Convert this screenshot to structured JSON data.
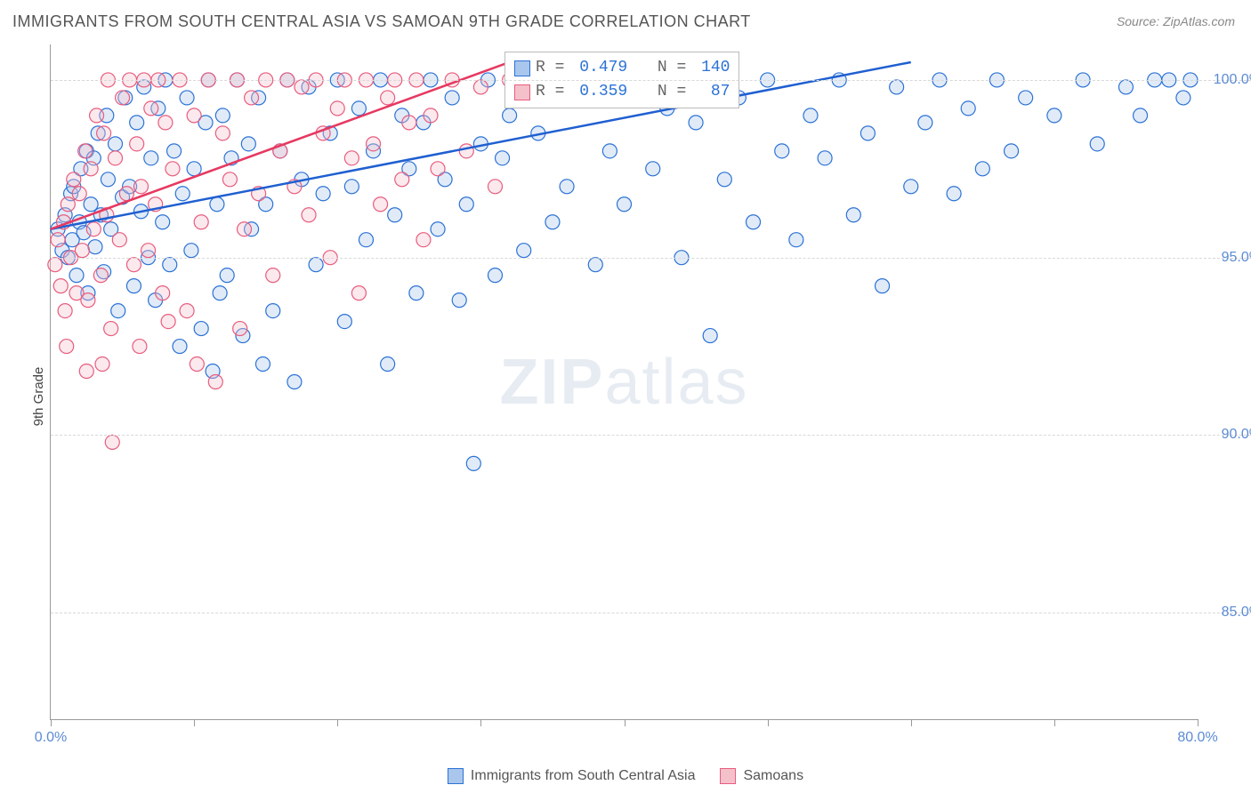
{
  "title": "IMMIGRANTS FROM SOUTH CENTRAL ASIA VS SAMOAN 9TH GRADE CORRELATION CHART",
  "source": "Source: ZipAtlas.com",
  "ylabel": "9th Grade",
  "watermark_zip": "ZIP",
  "watermark_atlas": "atlas",
  "chart": {
    "type": "scatter",
    "xlim": [
      0,
      80
    ],
    "ylim": [
      82,
      101
    ],
    "background_color": "#ffffff",
    "grid_color": "#d8d8d8",
    "axis_color": "#999999",
    "xticks": [
      0,
      10,
      20,
      30,
      40,
      50,
      60,
      70,
      80
    ],
    "xtick_labels": {
      "0": "0.0%",
      "80": "80.0%"
    },
    "yticks": [
      85,
      90,
      95,
      100
    ],
    "ytick_labels": {
      "85": "85.0%",
      "90": "90.0%",
      "95": "95.0%",
      "100": "100.0%"
    },
    "tick_label_color": "#5b8bd4",
    "tick_label_fontsize": 16,
    "marker_radius": 8,
    "marker_stroke_width": 1.2,
    "marker_fill_opacity": 0.35,
    "line_width": 2.5,
    "series": [
      {
        "name": "Immigrants from South Central Asia",
        "fill_color": "#a9c6ec",
        "stroke_color": "#2b72d6",
        "line_color": "#1f5fd1",
        "R_label": "R = ",
        "R_value": "0.479",
        "N_label": "N = ",
        "N_value": "140",
        "trend": {
          "x1": 0,
          "y1": 95.8,
          "x2": 60,
          "y2": 100.5
        },
        "points": [
          [
            0.5,
            95.8
          ],
          [
            0.8,
            95.2
          ],
          [
            1.0,
            96.2
          ],
          [
            1.2,
            95.0
          ],
          [
            1.4,
            96.8
          ],
          [
            1.5,
            95.5
          ],
          [
            1.6,
            97.0
          ],
          [
            1.8,
            94.5
          ],
          [
            2.0,
            96.0
          ],
          [
            2.1,
            97.5
          ],
          [
            2.3,
            95.7
          ],
          [
            2.5,
            98.0
          ],
          [
            2.6,
            94.0
          ],
          [
            2.8,
            96.5
          ],
          [
            3.0,
            97.8
          ],
          [
            3.1,
            95.3
          ],
          [
            3.3,
            98.5
          ],
          [
            3.5,
            96.2
          ],
          [
            3.7,
            94.6
          ],
          [
            3.9,
            99.0
          ],
          [
            4.0,
            97.2
          ],
          [
            4.2,
            95.8
          ],
          [
            4.5,
            98.2
          ],
          [
            4.7,
            93.5
          ],
          [
            5.0,
            96.7
          ],
          [
            5.2,
            99.5
          ],
          [
            5.5,
            97.0
          ],
          [
            5.8,
            94.2
          ],
          [
            6.0,
            98.8
          ],
          [
            6.3,
            96.3
          ],
          [
            6.5,
            99.8
          ],
          [
            6.8,
            95.0
          ],
          [
            7.0,
            97.8
          ],
          [
            7.3,
            93.8
          ],
          [
            7.5,
            99.2
          ],
          [
            7.8,
            96.0
          ],
          [
            8.0,
            100.0
          ],
          [
            8.3,
            94.8
          ],
          [
            8.6,
            98.0
          ],
          [
            9.0,
            92.5
          ],
          [
            9.2,
            96.8
          ],
          [
            9.5,
            99.5
          ],
          [
            9.8,
            95.2
          ],
          [
            10.0,
            97.5
          ],
          [
            10.5,
            93.0
          ],
          [
            10.8,
            98.8
          ],
          [
            11.0,
            100.0
          ],
          [
            11.3,
            91.8
          ],
          [
            11.6,
            96.5
          ],
          [
            12.0,
            99.0
          ],
          [
            12.3,
            94.5
          ],
          [
            12.6,
            97.8
          ],
          [
            13.0,
            100.0
          ],
          [
            13.4,
            92.8
          ],
          [
            13.8,
            98.2
          ],
          [
            14.0,
            95.8
          ],
          [
            14.5,
            99.5
          ],
          [
            15.0,
            96.5
          ],
          [
            15.5,
            93.5
          ],
          [
            16.0,
            98.0
          ],
          [
            16.5,
            100.0
          ],
          [
            17.0,
            91.5
          ],
          [
            17.5,
            97.2
          ],
          [
            18.0,
            99.8
          ],
          [
            18.5,
            94.8
          ],
          [
            19.0,
            96.8
          ],
          [
            19.5,
            98.5
          ],
          [
            20.0,
            100.0
          ],
          [
            20.5,
            93.2
          ],
          [
            21.0,
            97.0
          ],
          [
            21.5,
            99.2
          ],
          [
            22.0,
            95.5
          ],
          [
            22.5,
            98.0
          ],
          [
            23.0,
            100.0
          ],
          [
            23.5,
            92.0
          ],
          [
            24.0,
            96.2
          ],
          [
            24.5,
            99.0
          ],
          [
            25.0,
            97.5
          ],
          [
            25.5,
            94.0
          ],
          [
            26.0,
            98.8
          ],
          [
            26.5,
            100.0
          ],
          [
            27.0,
            95.8
          ],
          [
            27.5,
            97.2
          ],
          [
            28.0,
            99.5
          ],
          [
            28.5,
            93.8
          ],
          [
            29.0,
            96.5
          ],
          [
            29.5,
            89.2
          ],
          [
            30.0,
            98.2
          ],
          [
            30.5,
            100.0
          ],
          [
            31.0,
            94.5
          ],
          [
            31.5,
            97.8
          ],
          [
            32.0,
            99.0
          ],
          [
            33.0,
            95.2
          ],
          [
            34.0,
            98.5
          ],
          [
            35.0,
            96.0
          ],
          [
            35.5,
            100.0
          ],
          [
            36.0,
            97.0
          ],
          [
            37.0,
            99.8
          ],
          [
            38.0,
            94.8
          ],
          [
            39.0,
            98.0
          ],
          [
            40.0,
            96.5
          ],
          [
            41.0,
            100.0
          ],
          [
            42.0,
            97.5
          ],
          [
            43.0,
            99.2
          ],
          [
            44.0,
            95.0
          ],
          [
            45.0,
            98.8
          ],
          [
            46.0,
            92.8
          ],
          [
            47.0,
            97.2
          ],
          [
            48.0,
            99.5
          ],
          [
            49.0,
            96.0
          ],
          [
            50.0,
            100.0
          ],
          [
            51.0,
            98.0
          ],
          [
            52.0,
            95.5
          ],
          [
            53.0,
            99.0
          ],
          [
            54.0,
            97.8
          ],
          [
            55.0,
            100.0
          ],
          [
            56.0,
            96.2
          ],
          [
            57.0,
            98.5
          ],
          [
            58.0,
            94.2
          ],
          [
            59.0,
            99.8
          ],
          [
            60.0,
            97.0
          ],
          [
            61.0,
            98.8
          ],
          [
            62.0,
            100.0
          ],
          [
            63.0,
            96.8
          ],
          [
            64.0,
            99.2
          ],
          [
            65.0,
            97.5
          ],
          [
            66.0,
            100.0
          ],
          [
            67.0,
            98.0
          ],
          [
            68.0,
            99.5
          ],
          [
            70.0,
            99.0
          ],
          [
            72.0,
            100.0
          ],
          [
            73.0,
            98.2
          ],
          [
            75.0,
            99.8
          ],
          [
            76.0,
            99.0
          ],
          [
            77.0,
            100.0
          ],
          [
            78.0,
            100.0
          ],
          [
            79.0,
            99.5
          ],
          [
            79.5,
            100.0
          ],
          [
            11.8,
            94.0
          ],
          [
            14.8,
            92.0
          ]
        ]
      },
      {
        "name": "Samoans",
        "fill_color": "#f4c1cb",
        "stroke_color": "#e85c7e",
        "line_color": "#e63961",
        "R_label": "R = ",
        "R_value": "0.359",
        "N_label": "N = ",
        "N_value": " 87",
        "trend": {
          "x1": 0,
          "y1": 95.8,
          "x2": 32,
          "y2": 100.5
        },
        "points": [
          [
            0.3,
            94.8
          ],
          [
            0.5,
            95.5
          ],
          [
            0.7,
            94.2
          ],
          [
            0.9,
            96.0
          ],
          [
            1.0,
            93.5
          ],
          [
            1.2,
            96.5
          ],
          [
            1.4,
            95.0
          ],
          [
            1.6,
            97.2
          ],
          [
            1.8,
            94.0
          ],
          [
            2.0,
            96.8
          ],
          [
            2.2,
            95.2
          ],
          [
            2.4,
            98.0
          ],
          [
            2.6,
            93.8
          ],
          [
            2.8,
            97.5
          ],
          [
            3.0,
            95.8
          ],
          [
            3.2,
            99.0
          ],
          [
            3.5,
            94.5
          ],
          [
            3.7,
            98.5
          ],
          [
            3.9,
            96.2
          ],
          [
            4.0,
            100.0
          ],
          [
            4.2,
            93.0
          ],
          [
            4.5,
            97.8
          ],
          [
            4.8,
            95.5
          ],
          [
            5.0,
            99.5
          ],
          [
            5.3,
            96.8
          ],
          [
            5.5,
            100.0
          ],
          [
            5.8,
            94.8
          ],
          [
            6.0,
            98.2
          ],
          [
            6.3,
            97.0
          ],
          [
            6.5,
            100.0
          ],
          [
            6.8,
            95.2
          ],
          [
            7.0,
            99.2
          ],
          [
            7.3,
            96.5
          ],
          [
            7.5,
            100.0
          ],
          [
            7.8,
            94.0
          ],
          [
            8.0,
            98.8
          ],
          [
            8.5,
            97.5
          ],
          [
            9.0,
            100.0
          ],
          [
            9.5,
            93.5
          ],
          [
            10.0,
            99.0
          ],
          [
            10.5,
            96.0
          ],
          [
            11.0,
            100.0
          ],
          [
            11.5,
            91.5
          ],
          [
            12.0,
            98.5
          ],
          [
            12.5,
            97.2
          ],
          [
            13.0,
            100.0
          ],
          [
            13.5,
            95.8
          ],
          [
            14.0,
            99.5
          ],
          [
            14.5,
            96.8
          ],
          [
            15.0,
            100.0
          ],
          [
            15.5,
            94.5
          ],
          [
            16.0,
            98.0
          ],
          [
            16.5,
            100.0
          ],
          [
            17.0,
            97.0
          ],
          [
            17.5,
            99.8
          ],
          [
            18.0,
            96.2
          ],
          [
            18.5,
            100.0
          ],
          [
            19.0,
            98.5
          ],
          [
            19.5,
            95.0
          ],
          [
            20.0,
            99.2
          ],
          [
            20.5,
            100.0
          ],
          [
            21.0,
            97.8
          ],
          [
            21.5,
            94.0
          ],
          [
            22.0,
            100.0
          ],
          [
            22.5,
            98.2
          ],
          [
            23.0,
            96.5
          ],
          [
            23.5,
            99.5
          ],
          [
            24.0,
            100.0
          ],
          [
            24.5,
            97.2
          ],
          [
            25.0,
            98.8
          ],
          [
            25.5,
            100.0
          ],
          [
            26.0,
            95.5
          ],
          [
            26.5,
            99.0
          ],
          [
            27.0,
            97.5
          ],
          [
            28.0,
            100.0
          ],
          [
            29.0,
            98.0
          ],
          [
            30.0,
            99.8
          ],
          [
            31.0,
            97.0
          ],
          [
            32.0,
            100.0
          ],
          [
            1.1,
            92.5
          ],
          [
            2.5,
            91.8
          ],
          [
            4.3,
            89.8
          ],
          [
            6.2,
            92.5
          ],
          [
            8.2,
            93.2
          ],
          [
            10.2,
            92.0
          ],
          [
            13.2,
            93.0
          ],
          [
            3.6,
            92.0
          ]
        ]
      }
    ]
  },
  "bottom_legend": [
    {
      "label": "Immigrants from South Central Asia",
      "fill": "#a9c6ec",
      "stroke": "#2b72d6"
    },
    {
      "label": "Samoans",
      "fill": "#f4c1cb",
      "stroke": "#e85c7e"
    }
  ]
}
